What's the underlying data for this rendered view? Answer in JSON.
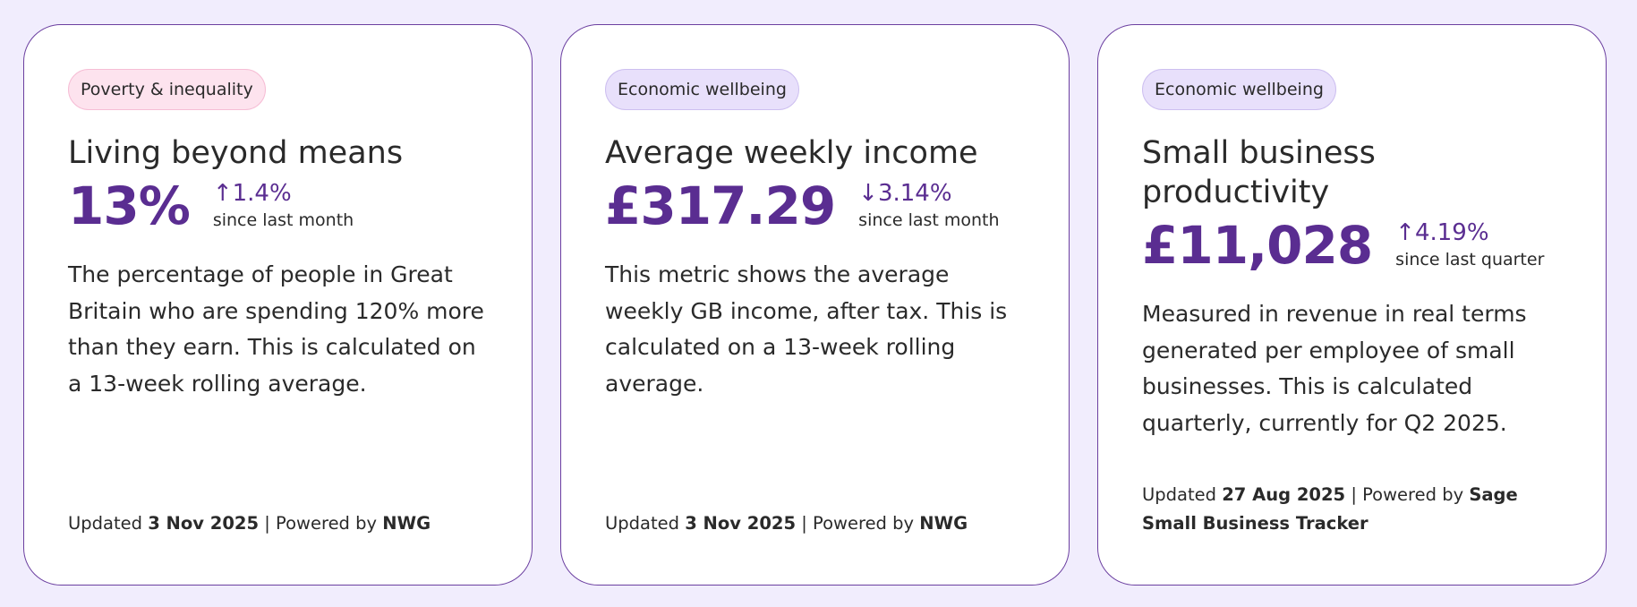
{
  "cards": [
    {
      "tag": "Poverty & inequality",
      "tag_style": "pink",
      "title": "Living beyond means",
      "value": "13%",
      "change": "↑1.4%",
      "change_period": "since last month",
      "description": "The percentage of people in Great Britain who are spending 120% more than they earn. This is calculated on a 13-week rolling average.",
      "footer": {
        "updated_label": "Updated",
        "date": "3 Nov 2025",
        "powered_label": "| Powered by",
        "source": "NWG"
      }
    },
    {
      "tag": "Economic wellbeing",
      "tag_style": "purple",
      "title": "Average weekly income",
      "value": "£317.29",
      "change": "↓3.14%",
      "change_period": "since last month",
      "description": "This metric shows the average weekly GB income, after tax. This is calculated on a 13-week rolling average.",
      "footer": {
        "updated_label": "Updated",
        "date": "3 Nov 2025",
        "powered_label": "| Powered by",
        "source": "NWG"
      }
    },
    {
      "tag": "Economic wellbeing",
      "tag_style": "purple",
      "title": "Small business productivity",
      "value": "£11,028",
      "change": "↑4.19%",
      "change_period": "since last quarter",
      "description": "Measured in revenue in real terms generated per employee of small businesses. This is calculated quarterly, currently for Q2 2025.",
      "footer": {
        "updated_label": "Updated",
        "date": "27 Aug 2025",
        "powered_label": "| Powered by",
        "source": "Sage Small Business Tracker"
      }
    }
  ]
}
